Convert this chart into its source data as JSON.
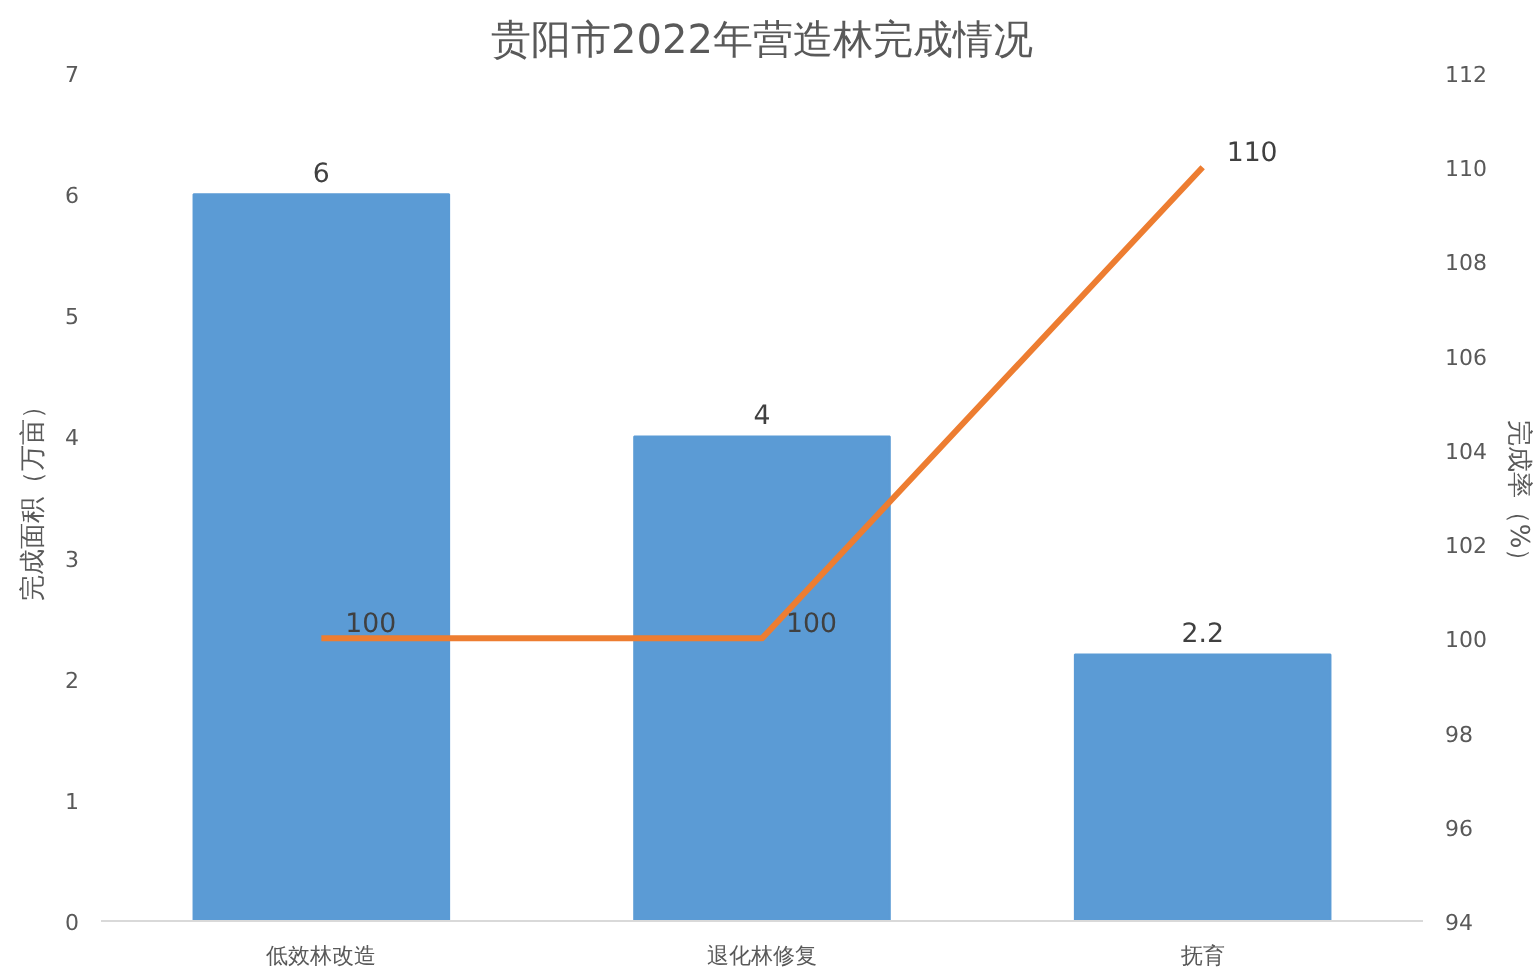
{
  "chart_data": {
    "type": "bar",
    "title": "贵阳市2022年营造林完成情况",
    "ylabel": "完成面积（万亩）",
    "y2label": "完成率（%）",
    "categories": [
      "低效林改造",
      "退化林修复",
      "抚育"
    ],
    "series": [
      {
        "color": "#5b9bd5",
        "values": [
          6,
          4,
          2.2
        ]
      },
      {
        "type": "line",
        "color": "#ed7d31",
        "axis": "y2",
        "values": [
          100,
          100,
          110
        ]
      }
    ],
    "ylim": [
      0,
      7
    ],
    "yticks": [
      0,
      1,
      2,
      3,
      4,
      5,
      6,
      7
    ],
    "y2lim": [
      94,
      112
    ],
    "y2ticks": [
      94,
      96,
      98,
      100,
      102,
      104,
      106,
      108,
      110,
      112
    ],
    "data_labels": true
  }
}
